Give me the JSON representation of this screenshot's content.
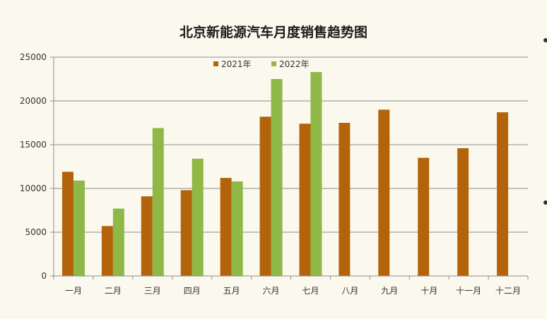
{
  "chart_data": {
    "type": "bar",
    "title": "北京新能源汽车月度销售趋势图",
    "xlabel": "",
    "ylabel": "",
    "categories": [
      "一月",
      "二月",
      "三月",
      "四月",
      "五月",
      "六月",
      "七月",
      "八月",
      "九月",
      "十月",
      "十一月",
      "十二月"
    ],
    "series": [
      {
        "name": "2021年",
        "color": "#b3640a",
        "values": [
          11900,
          5700,
          9100,
          9800,
          11200,
          18200,
          17400,
          17500,
          19000,
          13500,
          14600,
          18700
        ]
      },
      {
        "name": "2022年",
        "color": "#8fb847",
        "values": [
          10900,
          7700,
          16900,
          13400,
          10800,
          22500,
          23300,
          null,
          null,
          null,
          null,
          null
        ]
      }
    ],
    "ylim": [
      0,
      25000
    ],
    "yticks": [
      "0",
      "5000",
      "10000",
      "15000",
      "20000",
      "25000"
    ],
    "grid": true,
    "legend_position": "top"
  }
}
